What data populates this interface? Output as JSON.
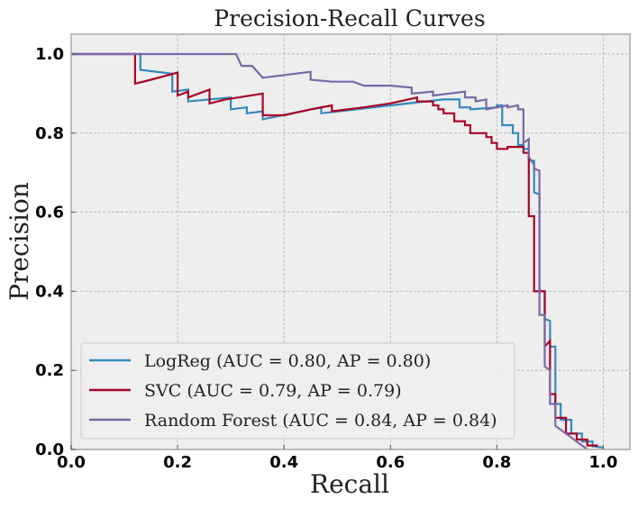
{
  "chart_data": {
    "type": "line",
    "title": "Precision-Recall Curves",
    "xlabel": "Recall",
    "ylabel": "Precision",
    "xlim": [
      0.0,
      1.05
    ],
    "ylim": [
      0.0,
      1.05
    ],
    "xticks": [
      "0.0",
      "0.2",
      "0.4",
      "0.6",
      "0.8",
      "1.0"
    ],
    "yticks": [
      "0.0",
      "0.2",
      "0.4",
      "0.6",
      "0.8",
      "1.0"
    ],
    "grid": true,
    "legend_position": "lower-left",
    "background": "#eeeeee",
    "series": [
      {
        "name": "LogReg (AUC = 0.80, AP = 0.80)",
        "color": "#348abd",
        "points": [
          [
            0.0,
            1.0
          ],
          [
            0.13,
            1.0
          ],
          [
            0.13,
            0.96
          ],
          [
            0.19,
            0.95
          ],
          [
            0.19,
            0.905
          ],
          [
            0.22,
            0.91
          ],
          [
            0.22,
            0.88
          ],
          [
            0.3,
            0.89
          ],
          [
            0.3,
            0.86
          ],
          [
            0.33,
            0.865
          ],
          [
            0.33,
            0.85
          ],
          [
            0.36,
            0.855
          ],
          [
            0.36,
            0.835
          ],
          [
            0.47,
            0.865
          ],
          [
            0.47,
            0.85
          ],
          [
            0.6,
            0.87
          ],
          [
            0.7,
            0.885
          ],
          [
            0.73,
            0.885
          ],
          [
            0.73,
            0.865
          ],
          [
            0.75,
            0.865
          ],
          [
            0.75,
            0.86
          ],
          [
            0.8,
            0.865
          ],
          [
            0.8,
            0.87
          ],
          [
            0.81,
            0.87
          ],
          [
            0.81,
            0.82
          ],
          [
            0.83,
            0.82
          ],
          [
            0.83,
            0.8
          ],
          [
            0.84,
            0.8
          ],
          [
            0.84,
            0.77
          ],
          [
            0.85,
            0.77
          ],
          [
            0.85,
            0.76
          ],
          [
            0.86,
            0.76
          ],
          [
            0.86,
            0.73
          ],
          [
            0.87,
            0.73
          ],
          [
            0.87,
            0.65
          ],
          [
            0.88,
            0.645
          ],
          [
            0.88,
            0.4
          ],
          [
            0.89,
            0.4
          ],
          [
            0.89,
            0.33
          ],
          [
            0.9,
            0.325
          ],
          [
            0.9,
            0.26
          ],
          [
            0.91,
            0.26
          ],
          [
            0.91,
            0.115
          ],
          [
            0.92,
            0.115
          ],
          [
            0.92,
            0.075
          ],
          [
            0.94,
            0.075
          ],
          [
            0.94,
            0.04
          ],
          [
            0.96,
            0.04
          ],
          [
            0.96,
            0.02
          ],
          [
            0.98,
            0.02
          ],
          [
            0.98,
            0.008
          ],
          [
            1.0,
            0.005
          ]
        ]
      },
      {
        "name": "SVC (AUC = 0.79, AP = 0.79)",
        "color": "#a60628",
        "points": [
          [
            0.0,
            1.0
          ],
          [
            0.12,
            1.0
          ],
          [
            0.12,
            0.925
          ],
          [
            0.15,
            0.935
          ],
          [
            0.2,
            0.953
          ],
          [
            0.2,
            0.895
          ],
          [
            0.22,
            0.905
          ],
          [
            0.22,
            0.89
          ],
          [
            0.26,
            0.91
          ],
          [
            0.26,
            0.875
          ],
          [
            0.29,
            0.885
          ],
          [
            0.36,
            0.9
          ],
          [
            0.36,
            0.845
          ],
          [
            0.4,
            0.845
          ],
          [
            0.45,
            0.86
          ],
          [
            0.49,
            0.87
          ],
          [
            0.49,
            0.855
          ],
          [
            0.55,
            0.865
          ],
          [
            0.6,
            0.875
          ],
          [
            0.65,
            0.89
          ],
          [
            0.65,
            0.88
          ],
          [
            0.68,
            0.88
          ],
          [
            0.68,
            0.87
          ],
          [
            0.69,
            0.87
          ],
          [
            0.69,
            0.86
          ],
          [
            0.7,
            0.86
          ],
          [
            0.7,
            0.85
          ],
          [
            0.72,
            0.85
          ],
          [
            0.72,
            0.83
          ],
          [
            0.74,
            0.83
          ],
          [
            0.74,
            0.82
          ],
          [
            0.75,
            0.82
          ],
          [
            0.75,
            0.8
          ],
          [
            0.78,
            0.8
          ],
          [
            0.78,
            0.79
          ],
          [
            0.79,
            0.79
          ],
          [
            0.79,
            0.775
          ],
          [
            0.8,
            0.775
          ],
          [
            0.8,
            0.76
          ],
          [
            0.82,
            0.76
          ],
          [
            0.82,
            0.765
          ],
          [
            0.85,
            0.765
          ],
          [
            0.85,
            0.75
          ],
          [
            0.86,
            0.75
          ],
          [
            0.86,
            0.59
          ],
          [
            0.87,
            0.59
          ],
          [
            0.87,
            0.4
          ],
          [
            0.89,
            0.4
          ],
          [
            0.89,
            0.26
          ],
          [
            0.9,
            0.275
          ],
          [
            0.9,
            0.14
          ],
          [
            0.91,
            0.14
          ],
          [
            0.91,
            0.08
          ],
          [
            0.93,
            0.08
          ],
          [
            0.93,
            0.04
          ],
          [
            0.95,
            0.04
          ],
          [
            0.95,
            0.025
          ],
          [
            0.97,
            0.025
          ],
          [
            0.97,
            0.01
          ],
          [
            0.99,
            0.01
          ]
        ]
      },
      {
        "name": "Random Forest (AUC = 0.84, AP = 0.84)",
        "color": "#7a68a6",
        "points": [
          [
            0.0,
            1.0
          ],
          [
            0.31,
            1.0
          ],
          [
            0.32,
            0.97
          ],
          [
            0.34,
            0.97
          ],
          [
            0.36,
            0.94
          ],
          [
            0.45,
            0.955
          ],
          [
            0.45,
            0.935
          ],
          [
            0.49,
            0.93
          ],
          [
            0.53,
            0.93
          ],
          [
            0.55,
            0.92
          ],
          [
            0.6,
            0.92
          ],
          [
            0.64,
            0.915
          ],
          [
            0.64,
            0.9
          ],
          [
            0.68,
            0.905
          ],
          [
            0.68,
            0.895
          ],
          [
            0.74,
            0.905
          ],
          [
            0.74,
            0.89
          ],
          [
            0.76,
            0.89
          ],
          [
            0.76,
            0.88
          ],
          [
            0.78,
            0.885
          ],
          [
            0.78,
            0.86
          ],
          [
            0.82,
            0.87
          ],
          [
            0.82,
            0.865
          ],
          [
            0.84,
            0.87
          ],
          [
            0.84,
            0.86
          ],
          [
            0.85,
            0.86
          ],
          [
            0.85,
            0.775
          ],
          [
            0.86,
            0.785
          ],
          [
            0.86,
            0.74
          ],
          [
            0.87,
            0.72
          ],
          [
            0.87,
            0.71
          ],
          [
            0.88,
            0.705
          ],
          [
            0.88,
            0.34
          ],
          [
            0.89,
            0.34
          ],
          [
            0.89,
            0.21
          ],
          [
            0.9,
            0.2
          ],
          [
            0.9,
            0.115
          ],
          [
            0.91,
            0.115
          ],
          [
            0.91,
            0.06
          ],
          [
            0.93,
            0.04
          ],
          [
            0.95,
            0.02
          ],
          [
            0.97,
            0.0
          ]
        ]
      }
    ]
  }
}
